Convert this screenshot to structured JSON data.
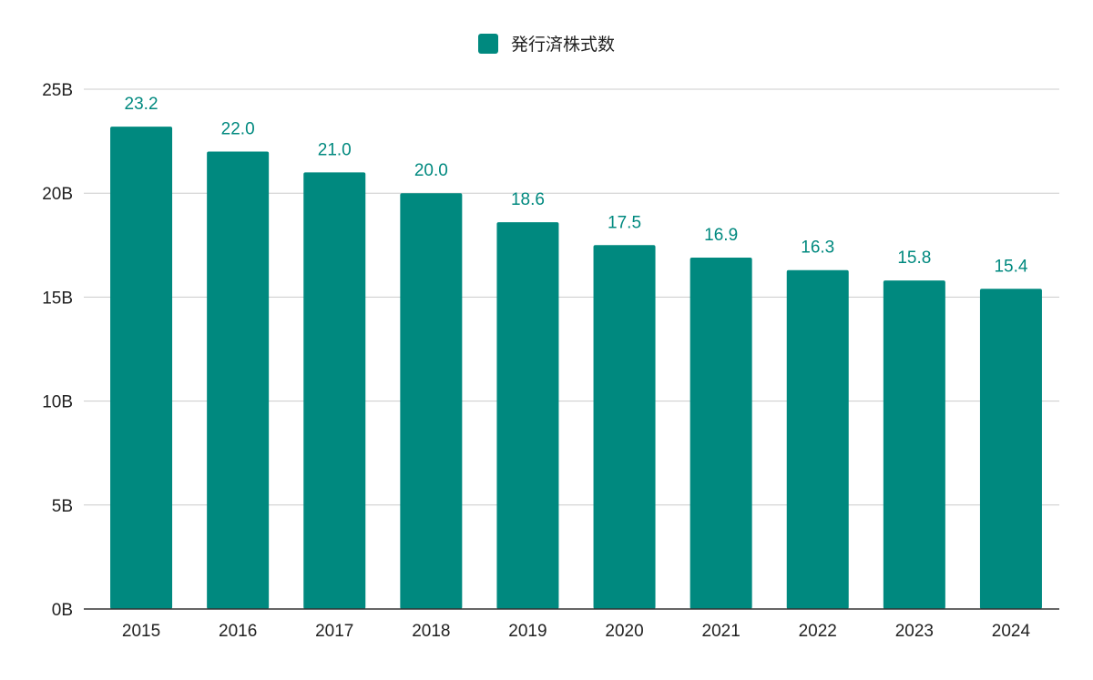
{
  "chart_data": {
    "type": "bar",
    "categories": [
      "2015",
      "2016",
      "2017",
      "2018",
      "2019",
      "2020",
      "2021",
      "2022",
      "2023",
      "2024"
    ],
    "series": [
      {
        "name": "発行済株式数",
        "values": [
          23.2,
          22.0,
          21.0,
          20.0,
          18.6,
          17.5,
          16.9,
          16.3,
          15.8,
          15.4
        ],
        "value_labels": [
          "23.2",
          "22.0",
          "21.0",
          "20.0",
          "18.6",
          "17.5",
          "16.9",
          "16.3",
          "15.8",
          "15.4"
        ]
      }
    ],
    "ylim": [
      0,
      25
    ],
    "y_ticks": [
      0,
      5,
      10,
      15,
      20,
      25
    ],
    "y_tick_labels": [
      "0B",
      "5B",
      "10B",
      "15B",
      "20B",
      "25B"
    ],
    "grid": true,
    "legend_position": "top-center",
    "colors": {
      "bar": "#00897f",
      "data_label": "#00897f",
      "grid": "#cccccc",
      "axis": "#333333",
      "tick_text": "#222222"
    }
  }
}
